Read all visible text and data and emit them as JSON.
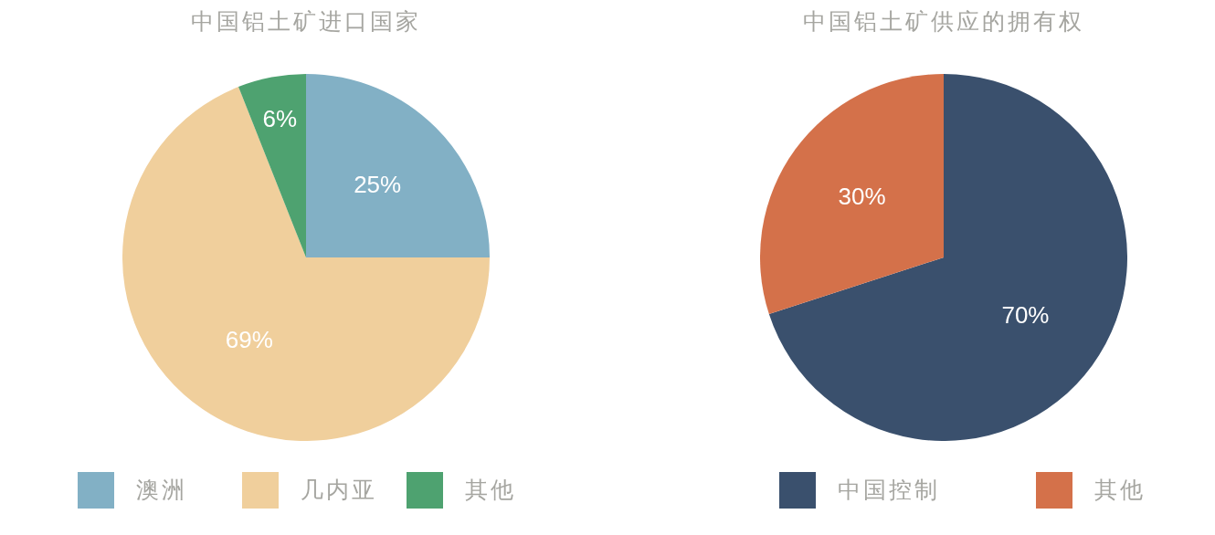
{
  "chart_data": [
    {
      "type": "pie",
      "title": "中国铝土矿进口国家",
      "categories": [
        "澳洲",
        "几内亚",
        "其他"
      ],
      "values": [
        25,
        69,
        6
      ],
      "colors": [
        "#82b0c5",
        "#f0cf9c",
        "#4ea270"
      ],
      "value_labels": [
        "25%",
        "69%",
        "6%"
      ],
      "legend": "bottom"
    },
    {
      "type": "pie",
      "title": "中国铝土矿供应的拥有权",
      "categories": [
        "中国控制",
        "其他"
      ],
      "values": [
        70,
        30
      ],
      "colors": [
        "#3a506d",
        "#d4714a"
      ],
      "value_labels": [
        "70%",
        "30%"
      ],
      "legend": "bottom"
    }
  ]
}
